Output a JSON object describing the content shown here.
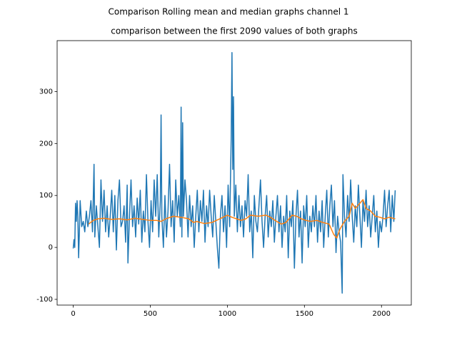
{
  "chart_data": {
    "type": "line",
    "suptitle": "Comparison Rolling mean and median graphs channel 1",
    "title": "comparison between the first 2090 values of both graphs",
    "xlim": [
      -104.45,
      2193.45
    ],
    "ylim": [
      -111,
      398
    ],
    "xticks": [
      0,
      500,
      1000,
      1500,
      2000
    ],
    "yticks": [
      -100,
      0,
      100,
      200,
      300
    ],
    "series": [
      {
        "color": "#1f77b4",
        "x": [
          0,
          5,
          10,
          15,
          20,
          25,
          30,
          35,
          40,
          45,
          55,
          65,
          75,
          85,
          95,
          105,
          115,
          125,
          135,
          140,
          150,
          160,
          170,
          180,
          190,
          200,
          210,
          220,
          230,
          240,
          250,
          260,
          270,
          280,
          290,
          300,
          310,
          320,
          330,
          340,
          350,
          355,
          365,
          375,
          385,
          395,
          405,
          415,
          425,
          435,
          445,
          455,
          465,
          475,
          485,
          495,
          505,
          515,
          525,
          535,
          545,
          555,
          565,
          570,
          575,
          585,
          595,
          605,
          615,
          625,
          635,
          645,
          655,
          665,
          675,
          685,
          695,
          700,
          705,
          710,
          715,
          725,
          735,
          745,
          755,
          765,
          775,
          785,
          795,
          805,
          815,
          825,
          835,
          845,
          855,
          865,
          875,
          885,
          895,
          905,
          915,
          925,
          935,
          945,
          955,
          965,
          975,
          985,
          995,
          1005,
          1015,
          1025,
          1030,
          1035,
          1040,
          1045,
          1055,
          1065,
          1075,
          1085,
          1095,
          1105,
          1115,
          1125,
          1135,
          1145,
          1155,
          1165,
          1175,
          1185,
          1195,
          1205,
          1215,
          1225,
          1235,
          1245,
          1255,
          1265,
          1275,
          1285,
          1295,
          1305,
          1315,
          1325,
          1335,
          1345,
          1355,
          1365,
          1375,
          1385,
          1395,
          1405,
          1415,
          1425,
          1435,
          1445,
          1455,
          1465,
          1475,
          1485,
          1495,
          1505,
          1515,
          1525,
          1535,
          1545,
          1555,
          1565,
          1575,
          1585,
          1595,
          1605,
          1615,
          1625,
          1635,
          1645,
          1655,
          1665,
          1675,
          1685,
          1695,
          1705,
          1715,
          1725,
          1735,
          1745,
          1750,
          1760,
          1770,
          1780,
          1790,
          1800,
          1810,
          1820,
          1830,
          1840,
          1850,
          1860,
          1870,
          1880,
          1890,
          1900,
          1910,
          1920,
          1930,
          1940,
          1950,
          1960,
          1970,
          1980,
          1990,
          2000,
          2010,
          2020,
          2030,
          2040,
          2050,
          2060,
          2070,
          2080,
          2089
        ],
        "values": [
          -2,
          15,
          0,
          85,
          50,
          90,
          60,
          -20,
          30,
          90,
          40,
          50,
          30,
          70,
          40,
          60,
          90,
          30,
          160,
          20,
          80,
          40,
          0,
          130,
          50,
          110,
          30,
          80,
          20,
          60,
          110,
          30,
          100,
          -5,
          90,
          130,
          40,
          50,
          80,
          10,
          120,
          -30,
          60,
          130,
          40,
          80,
          20,
          95,
          45,
          110,
          10,
          70,
          30,
          140,
          50,
          0,
          90,
          30,
          130,
          60,
          140,
          20,
          90,
          255,
          60,
          0,
          100,
          20,
          70,
          160,
          40,
          90,
          10,
          130,
          60,
          100,
          40,
          270,
          20,
          240,
          60,
          130,
          90,
          20,
          100,
          40,
          80,
          0,
          60,
          110,
          30,
          90,
          50,
          110,
          10,
          80,
          40,
          110,
          60,
          20,
          100,
          50,
          0,
          -40,
          60,
          100,
          30,
          80,
          0,
          120,
          40,
          210,
          375,
          150,
          290,
          60,
          120,
          30,
          100,
          40,
          80,
          20,
          90,
          60,
          140,
          30,
          70,
          -20,
          100,
          50,
          30,
          80,
          130,
          50,
          0,
          60,
          100,
          20,
          70,
          40,
          90,
          10,
          60,
          100,
          30,
          80,
          0,
          60,
          30,
          100,
          -20,
          70,
          40,
          90,
          -40,
          60,
          110,
          20,
          70,
          -30,
          80,
          40,
          100,
          0,
          60,
          30,
          80,
          40,
          100,
          10,
          70,
          30,
          90,
          0,
          60,
          110,
          20,
          80,
          120,
          40,
          90,
          -10,
          60,
          30,
          10,
          -88,
          140,
          60,
          20,
          100,
          50,
          130,
          60,
          10,
          80,
          40,
          120,
          60,
          0,
          90,
          50,
          110,
          40,
          80,
          20,
          60,
          100,
          30,
          70,
          0,
          50,
          30,
          60,
          110,
          40,
          80,
          110,
          30,
          100,
          50,
          110
        ]
      },
      {
        "color": "#ff7f0e",
        "x": [
          100,
          130,
          160,
          200,
          250,
          300,
          350,
          400,
          450,
          500,
          540,
          570,
          600,
          650,
          700,
          750,
          780,
          800,
          850,
          900,
          950,
          1000,
          1030,
          1060,
          1090,
          1120,
          1150,
          1200,
          1250,
          1280,
          1320,
          1350,
          1380,
          1420,
          1450,
          1480,
          1510,
          1540,
          1580,
          1620,
          1660,
          1690,
          1710,
          1730,
          1760,
          1790,
          1810,
          1830,
          1860,
          1880,
          1900,
          1930,
          1960,
          1990,
          2020,
          2050,
          2089
        ],
        "values": [
          45,
          52,
          55,
          56,
          54,
          55,
          53,
          56,
          54,
          52,
          52,
          50,
          55,
          60,
          58,
          55,
          48,
          50,
          46,
          48,
          55,
          62,
          58,
          55,
          52,
          55,
          62,
          60,
          62,
          58,
          50,
          45,
          48,
          62,
          60,
          55,
          52,
          50,
          52,
          48,
          45,
          25,
          18,
          35,
          50,
          60,
          85,
          75,
          85,
          92,
          75,
          70,
          60,
          58,
          55,
          58,
          55
        ]
      }
    ]
  }
}
